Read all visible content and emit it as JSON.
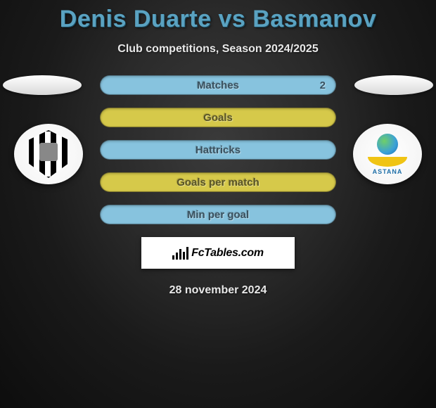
{
  "header": {
    "title": "Denis Duarte vs Basmanov",
    "title_color": "#5aa2c1",
    "subtitle": "Club competitions, Season 2024/2025"
  },
  "left_club": {
    "name": "Vitoria Guimaraes"
  },
  "right_club": {
    "name": "Astana",
    "label": "ASTANA"
  },
  "stats": [
    {
      "label": "Matches",
      "right_value": "2",
      "fill_color": "#87c3de",
      "text_color": "#3a5260",
      "show_side_ovals": true
    },
    {
      "label": "Goals",
      "fill_color": "#d6c94a",
      "text_color": "#5a5526",
      "show_side_ovals": false
    },
    {
      "label": "Hattricks",
      "fill_color": "#87c3de",
      "text_color": "#3a5260",
      "show_side_ovals": false
    },
    {
      "label": "Goals per match",
      "fill_color": "#d6c94a",
      "text_color": "#5a5526",
      "show_side_ovals": false
    },
    {
      "label": "Min per goal",
      "fill_color": "#87c3de",
      "text_color": "#3a5260",
      "show_side_ovals": false
    }
  ],
  "branding": {
    "text": "FcTables.com"
  },
  "date": "28 november 2024"
}
